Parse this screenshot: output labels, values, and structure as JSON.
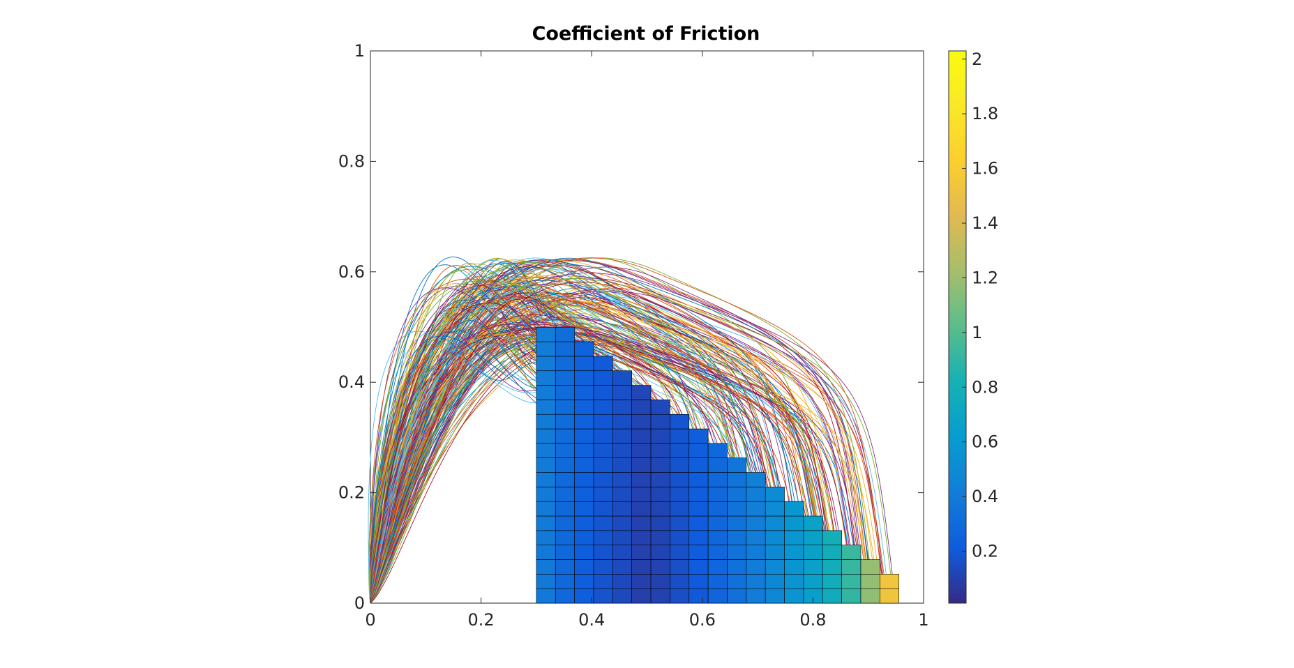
{
  "chart_data": {
    "type": "heatmap",
    "title": "Coefficient of Friction",
    "xlabel": "",
    "ylabel": "",
    "xlim": [
      0,
      1
    ],
    "ylim": [
      0,
      1
    ],
    "grid": false,
    "legend": "none",
    "colormap": "parula",
    "x_ticks": [
      "0",
      "0.2",
      "0.4",
      "0.6",
      "0.8",
      "1"
    ],
    "y_ticks": [
      "0",
      "0.2",
      "0.4",
      "0.6",
      "0.8",
      "1"
    ],
    "colorbar": {
      "range": [
        0.01,
        2.03
      ],
      "ticks": [
        "0.2",
        "0.4",
        "0.6",
        "0.8",
        "1",
        "1.2",
        "1.4",
        "1.6",
        "1.8",
        "2"
      ]
    },
    "grid_cells": {
      "x_start": 0.3,
      "cell_width": 0.0345,
      "cell_height": 0.0263,
      "columns": [
        {
          "x": 0.3,
          "height": 0.5,
          "value": 0.4
        },
        {
          "x": 0.3345,
          "height": 0.5,
          "value": 0.3
        },
        {
          "x": 0.369,
          "height": 0.474,
          "value": 0.24
        },
        {
          "x": 0.4035,
          "height": 0.447,
          "value": 0.19
        },
        {
          "x": 0.438,
          "height": 0.421,
          "value": 0.15
        },
        {
          "x": 0.4725,
          "height": 0.395,
          "value": 0.11
        },
        {
          "x": 0.507,
          "height": 0.368,
          "value": 0.12
        },
        {
          "x": 0.5415,
          "height": 0.342,
          "value": 0.17
        },
        {
          "x": 0.576,
          "height": 0.316,
          "value": 0.22
        },
        {
          "x": 0.6105,
          "height": 0.289,
          "value": 0.28
        },
        {
          "x": 0.645,
          "height": 0.263,
          "value": 0.35
        },
        {
          "x": 0.6795,
          "height": 0.237,
          "value": 0.42
        },
        {
          "x": 0.714,
          "height": 0.21,
          "value": 0.5
        },
        {
          "x": 0.7485,
          "height": 0.184,
          "value": 0.58
        },
        {
          "x": 0.783,
          "height": 0.158,
          "value": 0.66
        },
        {
          "x": 0.8175,
          "height": 0.131,
          "value": 0.78
        },
        {
          "x": 0.852,
          "height": 0.105,
          "value": 0.92
        },
        {
          "x": 0.8865,
          "height": 0.079,
          "value": 1.18
        },
        {
          "x": 0.921,
          "height": 0.053,
          "value": 1.55
        }
      ]
    },
    "trajectories": {
      "count": 240,
      "start": [
        0,
        0
      ],
      "peak_height_range": [
        0.45,
        0.605
      ],
      "end_x_range": [
        0.3,
        0.95
      ]
    }
  }
}
